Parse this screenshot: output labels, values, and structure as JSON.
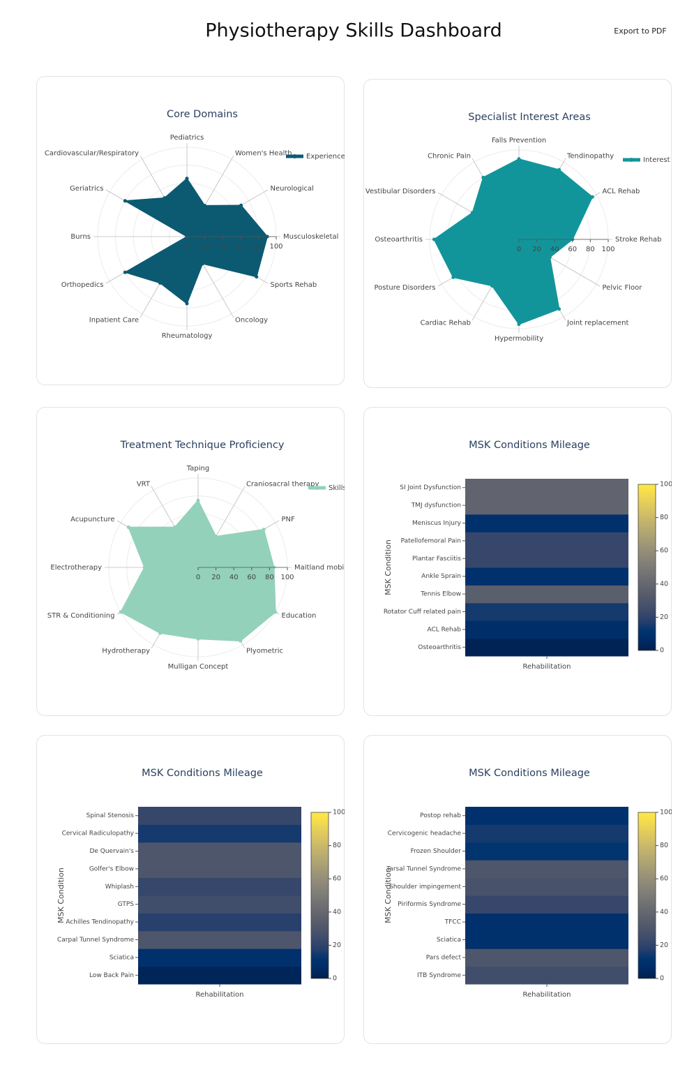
{
  "header": {
    "title": "Physiotherapy Skills Dashboard",
    "export_button": "Export to PDF"
  },
  "chart_data": [
    {
      "type": "radar",
      "title": "Core Domains",
      "categories": [
        "Pediatrics",
        "Women's Health",
        "Neurological",
        "Musculoskeletal",
        "Sports Rehab",
        "Oncology",
        "Rheumatology",
        "Inpatient Care",
        "Orthopedics",
        "Burns",
        "Geriatrics",
        "Cardiovascular/Respiratory"
      ],
      "series": [
        {
          "name": "Experience",
          "color": "#0b5a72",
          "values": [
            65,
            40,
            70,
            90,
            90,
            35,
            75,
            60,
            80,
            0,
            80,
            50
          ]
        }
      ],
      "rlim": [
        0,
        100
      ],
      "rticks": [
        0,
        20,
        40,
        60,
        80,
        100
      ],
      "legend": "top-right"
    },
    {
      "type": "radar",
      "title": "Specialist Interest Areas",
      "categories": [
        "Falls Prevention",
        "Tendinopathy",
        "ACL Rehab",
        "Stroke Rehab",
        "Pelvic Floor",
        "Joint replacement",
        "Hypermobility",
        "Cardiac Rehab",
        "Posture Disorders",
        "Osteoarthritis",
        "Vestibular Disorders",
        "Chronic Pain"
      ],
      "series": [
        {
          "name": "Interest",
          "color": "#12959a",
          "values": [
            90,
            90,
            95,
            60,
            40,
            90,
            95,
            60,
            85,
            95,
            60,
            80
          ]
        }
      ],
      "rlim": [
        0,
        100
      ],
      "rticks": [
        0,
        20,
        40,
        60,
        80,
        100
      ],
      "legend": "top-right"
    },
    {
      "type": "radar",
      "title": "Treatment Technique Proficiency",
      "categories": [
        "Taping",
        "Craniosacral therapy",
        "PNF",
        "Maitland mobilisation",
        "Education",
        "Plyometric",
        "Mulligan Concept",
        "Hydrotherapy",
        "STR & Conditioning",
        "Electrotherapy",
        "Acupuncture",
        "VRT"
      ],
      "series": [
        {
          "name": "Skills",
          "color": "#93d1bb",
          "values": [
            75,
            40,
            85,
            85,
            100,
            95,
            80,
            85,
            100,
            60,
            90,
            52
          ]
        }
      ],
      "rlim": [
        0,
        100
      ],
      "rticks": [
        0,
        20,
        40,
        60,
        80,
        100
      ],
      "legend": "top-right"
    },
    {
      "type": "heatmap",
      "title": "MSK Conditions Mileage",
      "x": [
        "Rehabilitation"
      ],
      "ylabel": "MSK Condition",
      "categories": [
        "Osteoarthritis",
        "ACL Rehab",
        "Rotator Cuff related pain",
        "Tennis Elbow",
        "Ankle Sprain",
        "Plantar Fasciitis",
        "Patellofemoral Pain",
        "Meniscus Injury",
        "TMJ dysfunction",
        "SI Joint Dysfunction"
      ],
      "values": [
        2,
        8,
        15,
        35,
        10,
        22,
        22,
        10,
        38,
        38
      ],
      "colorscale": "Cividis",
      "zlim": [
        0,
        100
      ],
      "zticks": [
        0,
        20,
        40,
        60,
        80,
        100
      ]
    },
    {
      "type": "heatmap",
      "title": "MSK Conditions Mileage",
      "x": [
        "Rehabilitation"
      ],
      "ylabel": "MSK Condition",
      "categories": [
        "Low Back Pain",
        "Sciatica",
        "Carpal Tunnel Syndrome",
        "Achilles Tendinopathy",
        "GTPS",
        "Whiplash",
        "Golfer's Elbow",
        "De Quervain's",
        "Cervical Radiculopathy",
        "Spinal Stenosis"
      ],
      "values": [
        3,
        10,
        30,
        18,
        25,
        22,
        30,
        30,
        15,
        22
      ],
      "colorscale": "Cividis",
      "zlim": [
        0,
        100
      ],
      "zticks": [
        0,
        20,
        40,
        60,
        80,
        100
      ]
    },
    {
      "type": "heatmap",
      "title": "MSK Conditions Mileage",
      "x": [
        "Rehabilitation"
      ],
      "ylabel": "MSK Condition",
      "categories": [
        "ITB Syndrome",
        "Pars defect",
        "Sciatica",
        "TFCC",
        "Piriformis Syndrome",
        "Shoulder impingement",
        "Tarsal Tunnel Syndrome",
        "Frozen Shoulder",
        "Cervicogenic headache",
        "Postop rehab"
      ],
      "values": [
        25,
        30,
        10,
        10,
        22,
        28,
        30,
        12,
        15,
        10
      ],
      "colorscale": "Cividis",
      "zlim": [
        0,
        100
      ],
      "zticks": [
        0,
        20,
        40,
        60,
        80,
        100
      ]
    }
  ]
}
